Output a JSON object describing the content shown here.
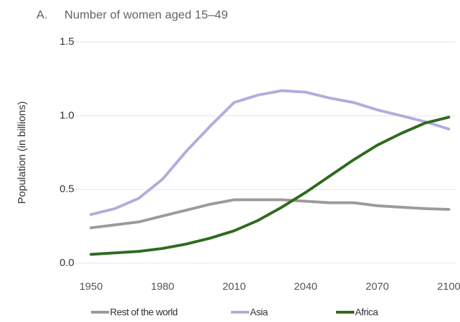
{
  "chart_data": {
    "type": "line",
    "panel": "A.",
    "title": "Number of women aged 15–49",
    "y_label": "Population (in billions)",
    "x": [
      1950,
      1960,
      1970,
      1980,
      1990,
      2000,
      2010,
      2020,
      2030,
      2040,
      2050,
      2060,
      2070,
      2080,
      2090,
      2100
    ],
    "series": [
      {
        "name": "Rest of the world",
        "color": "#9b9b9b",
        "values": [
          0.24,
          0.26,
          0.28,
          0.32,
          0.36,
          0.4,
          0.43,
          0.43,
          0.43,
          0.42,
          0.41,
          0.41,
          0.39,
          0.38,
          0.37,
          0.365
        ]
      },
      {
        "name": "Asia",
        "color": "#b3acdc",
        "values": [
          0.33,
          0.37,
          0.44,
          0.57,
          0.76,
          0.93,
          1.09,
          1.14,
          1.17,
          1.16,
          1.12,
          1.09,
          1.04,
          1.0,
          0.96,
          0.91
        ]
      },
      {
        "name": "Africa",
        "color": "#2e6b1e",
        "values": [
          0.06,
          0.07,
          0.08,
          0.1,
          0.13,
          0.17,
          0.22,
          0.29,
          0.38,
          0.48,
          0.59,
          0.7,
          0.8,
          0.88,
          0.95,
          0.99
        ]
      }
    ],
    "xlim": [
      1950,
      2100
    ],
    "xticks": [
      1950,
      1980,
      2010,
      2040,
      2070,
      2100
    ],
    "ylim": [
      0,
      1.5
    ],
    "yticks": [
      {
        "value": 1.5,
        "label": "1.5"
      },
      {
        "value": 1,
        "label": "1.0"
      },
      {
        "value": 0.5,
        "label": "0.5"
      },
      {
        "value": 0,
        "label": "0.0"
      }
    ],
    "grid": true,
    "legend": "bottom"
  }
}
